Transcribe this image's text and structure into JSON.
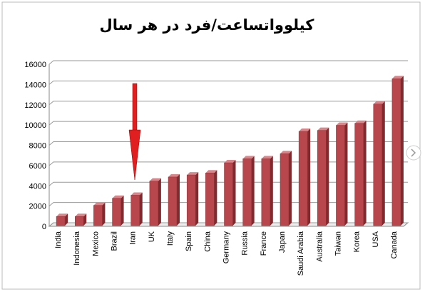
{
  "chart_data": {
    "type": "bar",
    "title": "کیلوواتساعت/فرد در هر سال",
    "categories": [
      "India",
      "Indonesia",
      "Mexico",
      "Brazil",
      "Iran",
      "UK",
      "Italy",
      "Spain",
      "China",
      "Germany",
      "Russia",
      "France",
      "Japan",
      "Saudi Arabia",
      "Australia",
      "Taiwan",
      "Korea",
      "USA",
      "Canada"
    ],
    "values": [
      900,
      900,
      2000,
      2700,
      3000,
      4400,
      4800,
      5000,
      5200,
      6200,
      6600,
      6600,
      7100,
      9300,
      9400,
      9900,
      10100,
      12000,
      14500
    ],
    "color": "#b7474c",
    "ylim": [
      0,
      16000
    ],
    "yticks": [
      0,
      2000,
      4000,
      6000,
      8000,
      10000,
      12000,
      14000,
      16000
    ],
    "grid": true
  }
}
